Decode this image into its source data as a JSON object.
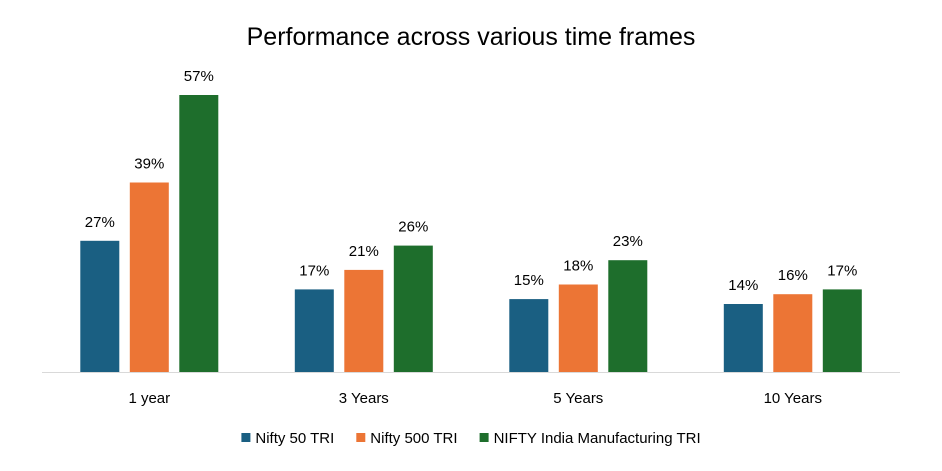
{
  "chart_data": {
    "type": "bar",
    "title": "Performance across various time frames",
    "xlabel": "",
    "ylabel": "",
    "categories": [
      "1 year",
      "3 Years",
      "5 Years",
      "10 Years"
    ],
    "series": [
      {
        "name": "Nifty 50 TRI",
        "color": "#1a5f82",
        "values": [
          27,
          17,
          15,
          14
        ],
        "labels": [
          "27%",
          "17%",
          "15%",
          "14%"
        ]
      },
      {
        "name": "Nifty 500 TRI",
        "color": "#ec7535",
        "values": [
          39,
          21,
          18,
          16
        ],
        "labels": [
          "39%",
          "21%",
          "18%",
          "16%"
        ]
      },
      {
        "name": "NIFTY India Manufacturing TRI",
        "color": "#1e6e2c",
        "values": [
          57,
          26,
          23,
          17
        ],
        "labels": [
          "57%",
          "26%",
          "23%",
          "17%"
        ]
      }
    ],
    "unit": "%",
    "ylim": [
      0,
      57
    ],
    "grid": false,
    "legend_position": "bottom"
  }
}
